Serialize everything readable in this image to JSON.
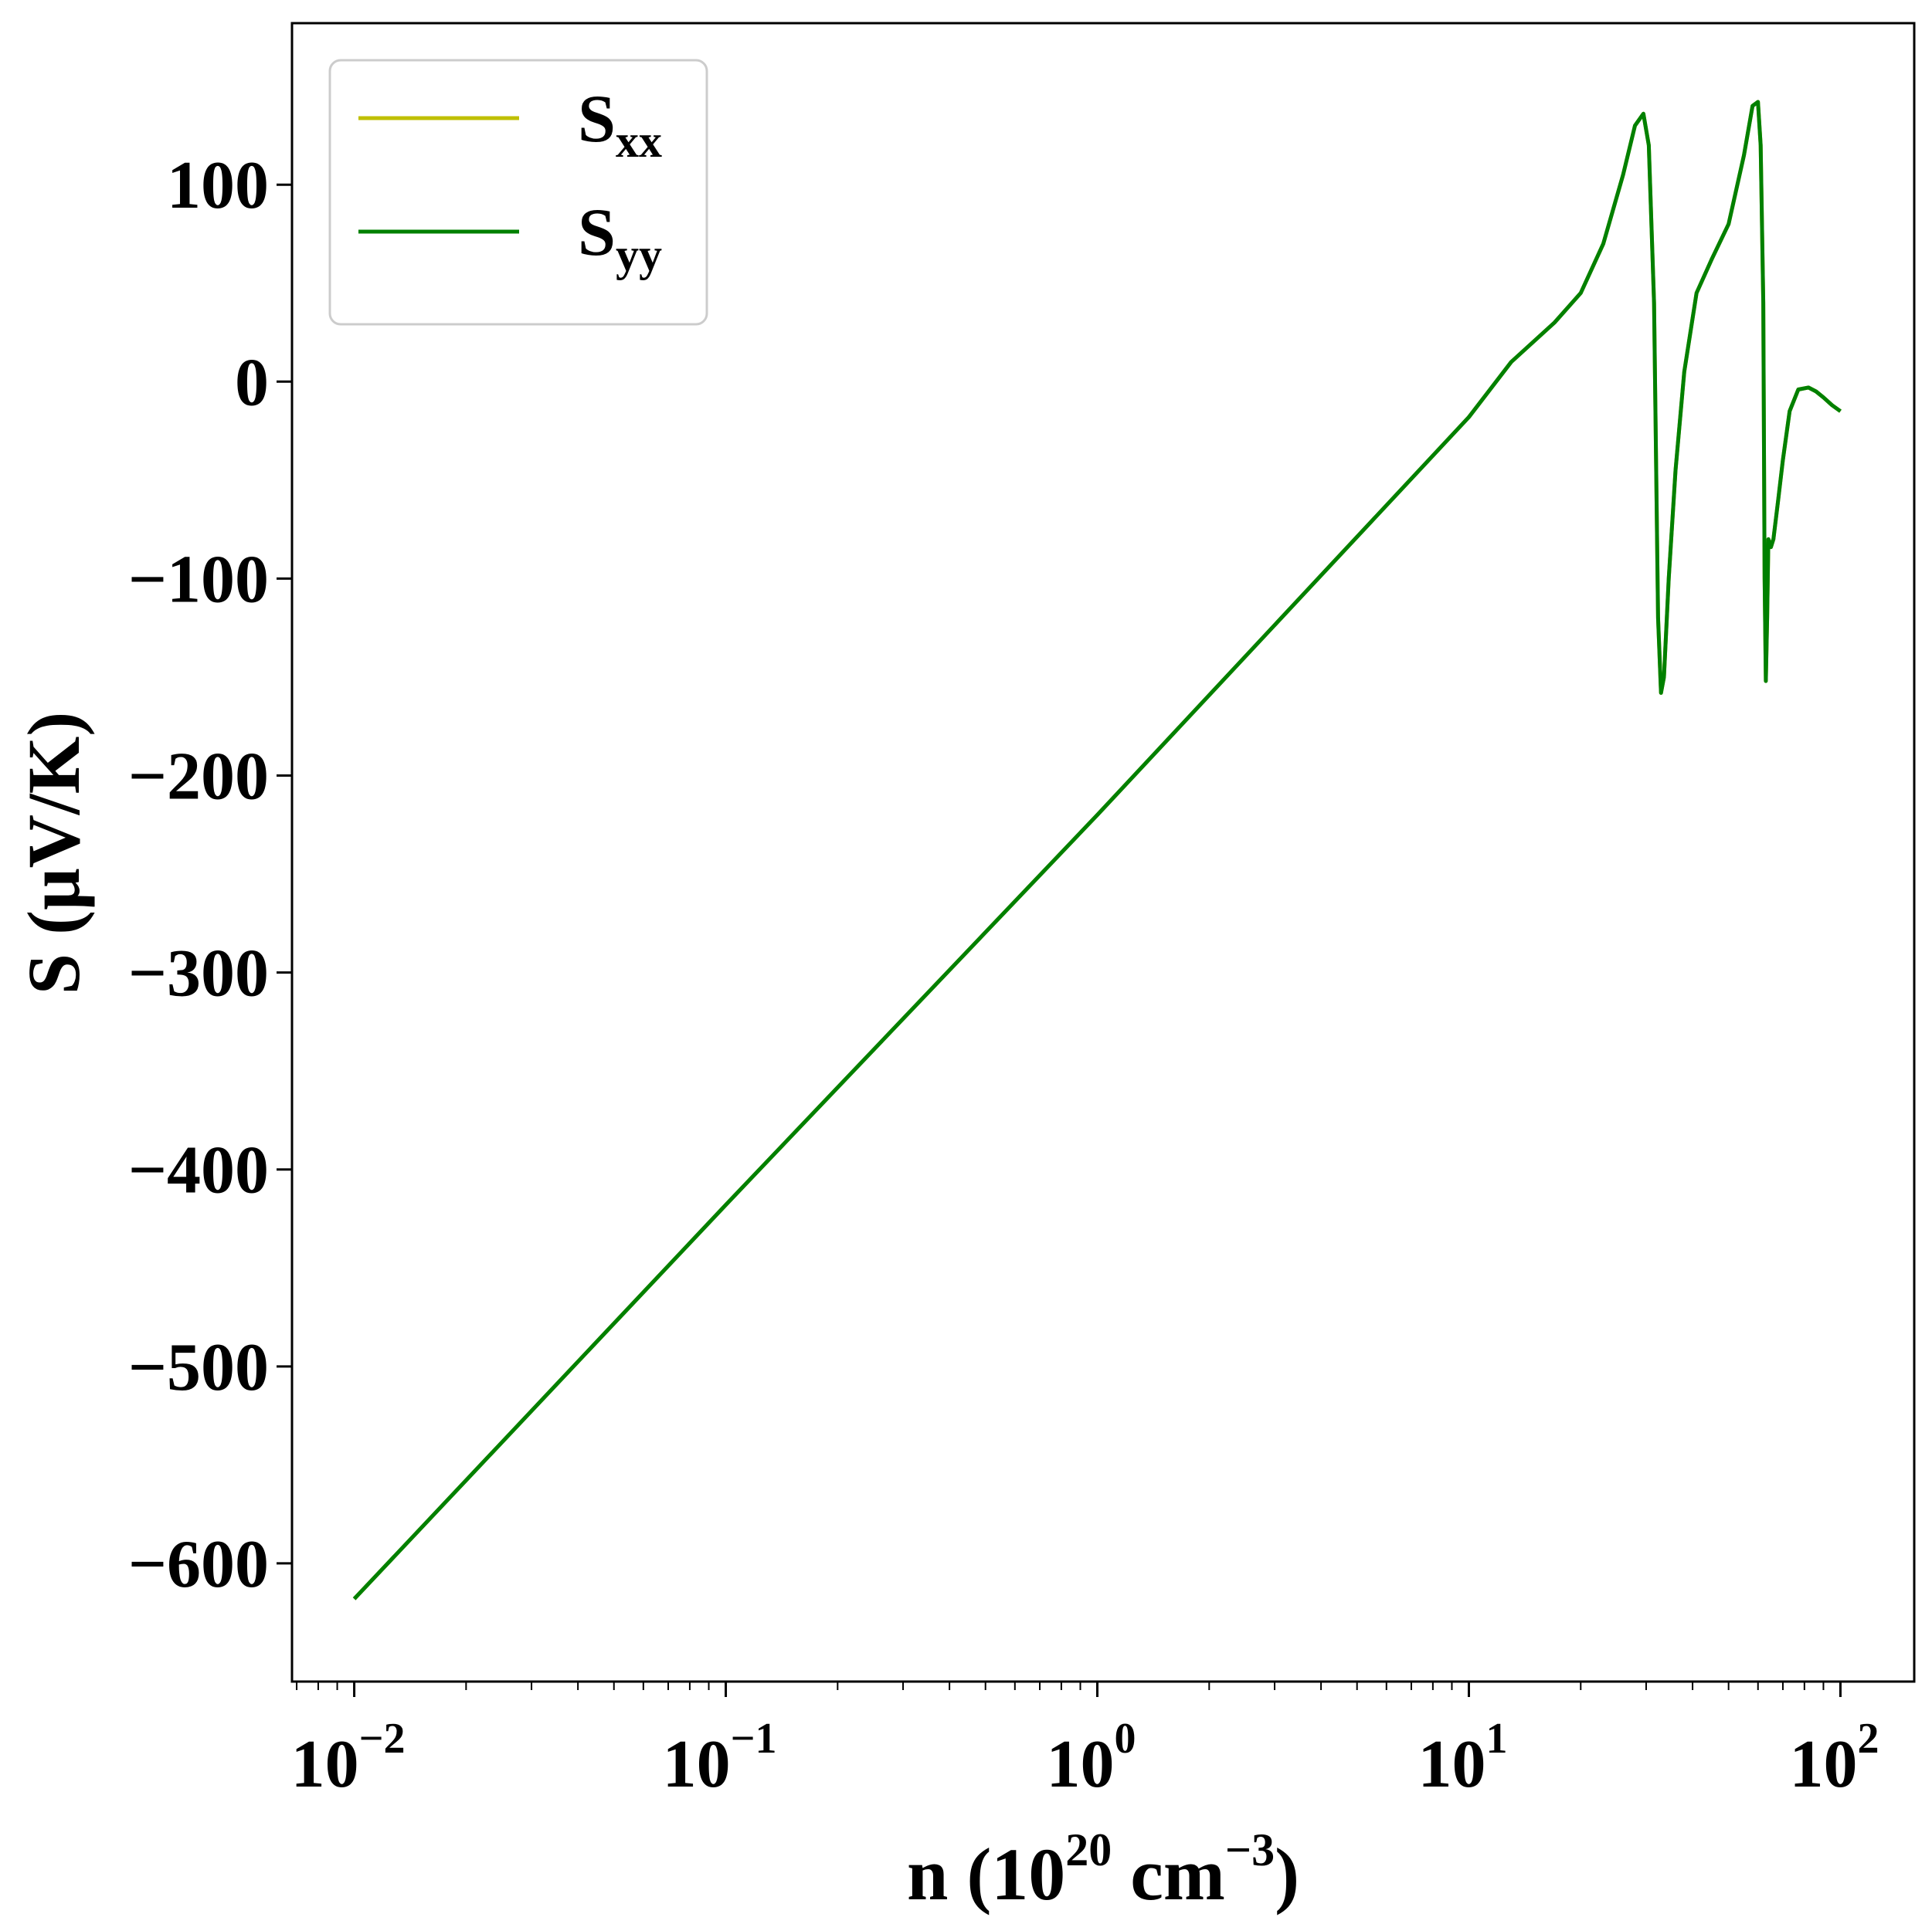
{
  "chart_data": {
    "type": "line",
    "xscale": "log",
    "xlim": [
      0.0068,
      158
    ],
    "ylim": [
      -660,
      182
    ],
    "xlabel": {
      "prefix": "n (10",
      "sup1": "20",
      "middle": " cm",
      "sup2": "−3",
      "suffix": ")"
    },
    "ylabel": "S (μV/K)",
    "grid": false,
    "legend_position": "top-left",
    "xticks": [
      {
        "value": 0.01,
        "base": "10",
        "exp": "−2"
      },
      {
        "value": 0.1,
        "base": "10",
        "exp": "−1"
      },
      {
        "value": 1,
        "base": "10",
        "exp": "0"
      },
      {
        "value": 10,
        "base": "10",
        "exp": "1"
      },
      {
        "value": 100,
        "base": "10",
        "exp": "2"
      }
    ],
    "yticks": [
      {
        "value": 100,
        "label": "100"
      },
      {
        "value": 0,
        "label": "0"
      },
      {
        "value": -100,
        "label": "−100"
      },
      {
        "value": -200,
        "label": "−200"
      },
      {
        "value": -300,
        "label": "−300"
      },
      {
        "value": -400,
        "label": "−400"
      },
      {
        "value": -500,
        "label": "−500"
      },
      {
        "value": -600,
        "label": "−600"
      }
    ],
    "series": [
      {
        "name": "S",
        "sub": "xx",
        "color": "#bfbf00",
        "x": [
          0.01,
          0.1,
          1,
          10,
          13,
          17,
          20,
          23,
          26,
          28,
          29.5,
          30.5,
          31.5,
          32.3,
          32.9,
          33.5,
          34.5,
          36,
          38,
          41,
          45,
          50,
          55,
          58,
          60,
          61,
          62,
          62.5,
          63,
          63.5,
          64,
          64.5,
          65,
          66,
          68,
          70,
          73,
          77,
          82,
          86,
          90,
          95,
          100
        ],
        "y": [
          -618,
          -418,
          -220,
          -18,
          10,
          30,
          45,
          70,
          105,
          130,
          136,
          120,
          40,
          -120,
          -158,
          -150,
          -100,
          -45,
          5,
          45,
          62,
          80,
          115,
          140,
          142,
          120,
          40,
          -100,
          -152,
          -120,
          -80,
          -82,
          -84,
          -80,
          -60,
          -40,
          -15,
          -4,
          -3,
          -5,
          -8,
          -12,
          -15
        ]
      },
      {
        "name": "S",
        "sub": "yy",
        "color": "#008000",
        "x": [
          0.01,
          0.1,
          1,
          10,
          13,
          17,
          20,
          23,
          26,
          28,
          29.5,
          30.5,
          31.5,
          32.3,
          32.9,
          33.5,
          34.5,
          36,
          38,
          41,
          45,
          50,
          55,
          58,
          60,
          61,
          62,
          62.5,
          63,
          63.5,
          64,
          64.5,
          65,
          66,
          68,
          70,
          73,
          77,
          82,
          86,
          90,
          95,
          100
        ],
        "y": [
          -618,
          -418,
          -220,
          -18,
          10,
          30,
          45,
          70,
          105,
          130,
          136,
          120,
          40,
          -120,
          -158,
          -150,
          -100,
          -45,
          5,
          45,
          62,
          80,
          115,
          140,
          142,
          120,
          40,
          -100,
          -152,
          -120,
          -80,
          -82,
          -84,
          -80,
          -60,
          -40,
          -15,
          -4,
          -3,
          -5,
          -8,
          -12,
          -15
        ]
      }
    ]
  }
}
